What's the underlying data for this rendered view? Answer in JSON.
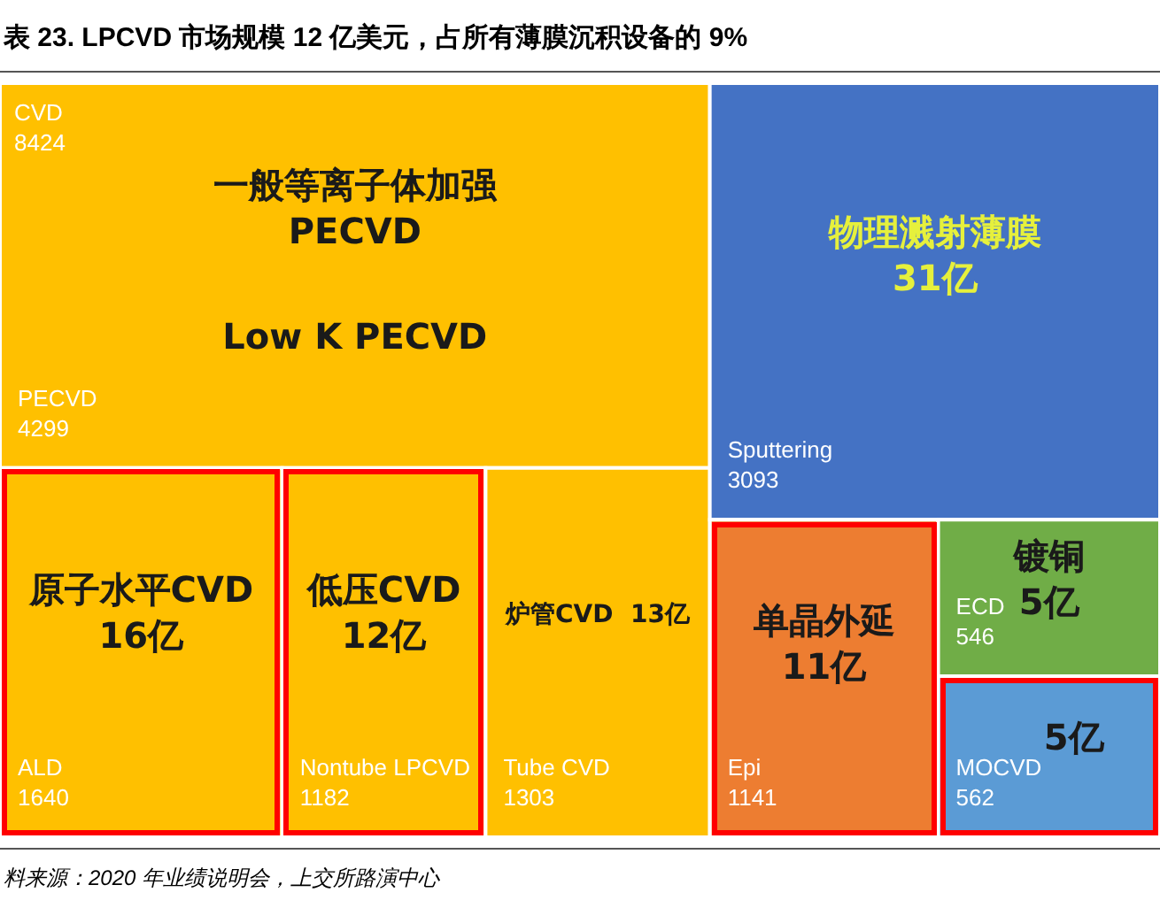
{
  "chart_data": {
    "type": "other",
    "title": "表 23. LPCVD 市场规模 12 亿美元，占所有薄膜沉积设备的 9%",
    "categories": [
      "PECVD",
      "ALD",
      "Nontube LPCVD",
      "Tube CVD",
      "Sputtering",
      "Epi",
      "ECD",
      "MOCVD"
    ],
    "series": [
      {
        "name": "CVD",
        "color": "#ffc000",
        "values": [
          4299,
          1640,
          1182,
          1303,
          null,
          null,
          null,
          null
        ]
      },
      {
        "color": "#4472c4",
        "values": [
          null,
          null,
          null,
          null,
          3093,
          null,
          null,
          null
        ]
      },
      {
        "color": "#ed7d31",
        "values": [
          null,
          null,
          null,
          null,
          null,
          1141,
          null,
          null
        ]
      },
      {
        "color": "#70ad47",
        "values": [
          null,
          null,
          null,
          null,
          null,
          null,
          546,
          null
        ]
      },
      {
        "color": "#5b9bd5",
        "values": [
          null,
          null,
          null,
          null,
          null,
          null,
          null,
          562
        ]
      }
    ],
    "totals": [
      "8424",
      null,
      null,
      null,
      null
    ],
    "data_labels": true,
    "annotations": [
      {
        "text": "一般等离子体加强\nPECVD",
        "x": "PECVD"
      },
      {
        "text": "Low K PECVD",
        "x": "PECVD"
      },
      {
        "text": "原子水平CVD\n16亿",
        "x": "ALD"
      },
      {
        "text": "低压CVD\n12亿",
        "x": "Nontube LPCVD"
      },
      {
        "text": "炉管CVD  13亿",
        "x": "Tube CVD"
      },
      {
        "text": "物理溅射薄膜\n31亿",
        "x": "Sputtering"
      },
      {
        "text": "单晶外延\n11亿",
        "x": "Epi"
      },
      {
        "text": "镀铜\n5亿",
        "x": "ECD"
      },
      {
        "text": "5亿",
        "x": "MOCVD"
      },
      "料来源：2020 年业绩说明会，上交所路演中心"
    ]
  }
}
